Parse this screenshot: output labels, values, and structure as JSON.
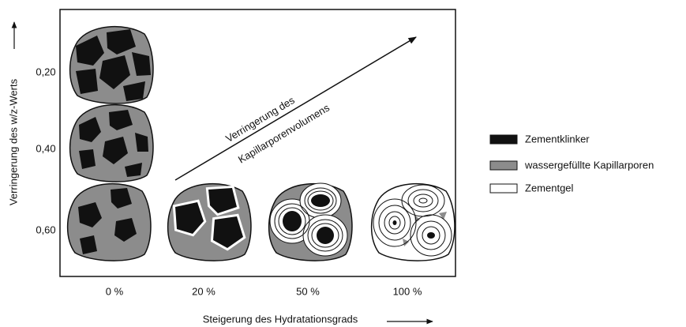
{
  "y_axis": {
    "title": "Verringerung des w/z-Werts",
    "labels": [
      "0,20",
      "0,40",
      "0,60"
    ]
  },
  "x_axis": {
    "title": "Steigerung des Hydratationsgrads",
    "labels": [
      "0 %",
      "20 %",
      "50 %",
      "100 %"
    ]
  },
  "annotation": {
    "lines": [
      "Verringerung des",
      "Kapillarporenvolumens"
    ]
  },
  "legend": [
    {
      "label": "Zementklinker"
    },
    {
      "label": "wassergefüllte Kapillarporen"
    },
    {
      "label": "Zementgel"
    }
  ]
}
